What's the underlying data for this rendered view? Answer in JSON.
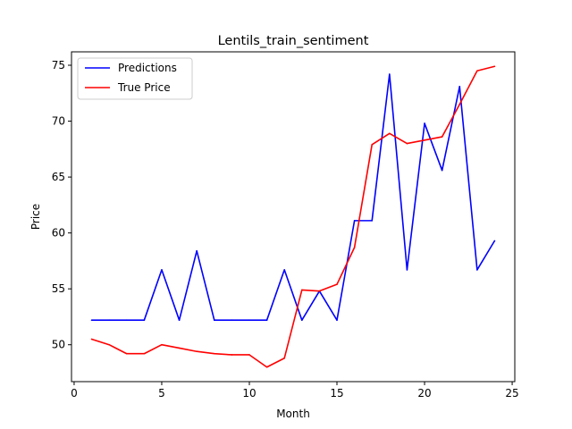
{
  "chart_data": {
    "type": "line",
    "title": "Lentils_train_sentiment",
    "xlabel": "Month",
    "ylabel": "Price",
    "xlim": [
      -0.15,
      25.15
    ],
    "ylim": [
      46.7,
      76.2
    ],
    "xticks": [
      0,
      5,
      10,
      15,
      20,
      25
    ],
    "yticks": [
      50,
      55,
      60,
      65,
      70,
      75
    ],
    "grid": false,
    "legend_position": "top-left",
    "x": [
      1,
      2,
      3,
      4,
      5,
      6,
      7,
      8,
      9,
      10,
      11,
      12,
      13,
      14,
      15,
      16,
      17,
      18,
      19,
      20,
      21,
      22,
      23,
      24
    ],
    "series": [
      {
        "name": "Predictions",
        "color": "#0000ff",
        "values": [
          52.2,
          52.2,
          52.2,
          52.2,
          56.7,
          52.2,
          58.4,
          52.2,
          52.2,
          52.2,
          52.2,
          56.7,
          52.2,
          54.8,
          52.2,
          61.1,
          61.1,
          74.2,
          56.7,
          69.8,
          65.6,
          73.1,
          56.7,
          59.3
        ]
      },
      {
        "name": "True Price",
        "color": "#ff0000",
        "values": [
          50.5,
          50.0,
          49.2,
          49.2,
          50.0,
          49.7,
          49.4,
          49.2,
          49.1,
          49.1,
          48.0,
          48.8,
          54.9,
          54.8,
          55.4,
          58.7,
          67.9,
          68.9,
          68.0,
          68.3,
          68.6,
          71.5,
          74.5,
          74.9
        ]
      }
    ]
  }
}
